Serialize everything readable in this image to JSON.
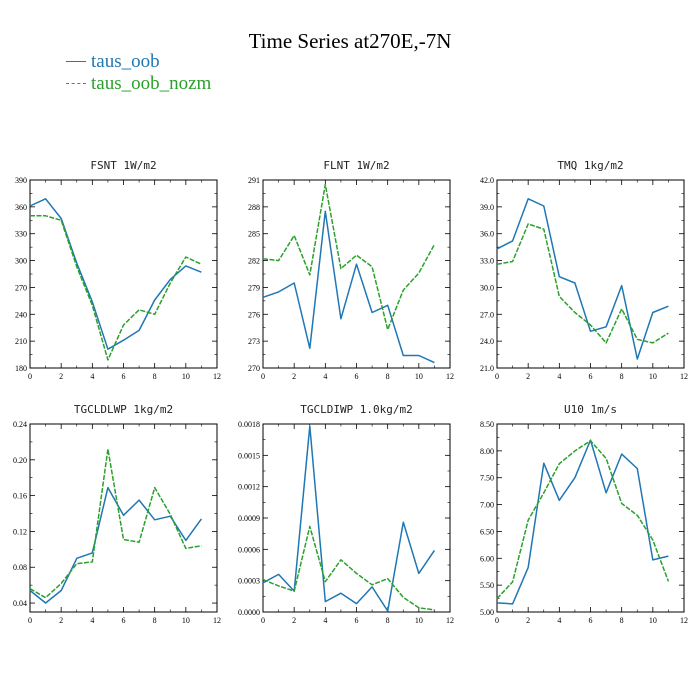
{
  "suptitle": "Time Series at270E,-7N",
  "legend": [
    {
      "label": "taus_oob",
      "color": "#1f77b4",
      "dashed": false
    },
    {
      "label": "taus_oob_nozm",
      "color": "#2ca02c",
      "dashed": true
    }
  ],
  "chart_data": [
    {
      "type": "line",
      "title": "FSNT  1W/m2",
      "xlim": [
        0,
        12
      ],
      "xticks": [
        "0",
        "2",
        "4",
        "6",
        "8",
        "10",
        "12"
      ],
      "ylim": [
        180,
        390
      ],
      "yticks": [
        "180",
        "210",
        "240",
        "270",
        "300",
        "330",
        "360",
        "390"
      ],
      "x": [
        0,
        1,
        2,
        3,
        4,
        5,
        6,
        7,
        8,
        9,
        10,
        11
      ],
      "series": [
        {
          "name": "taus_oob",
          "color": "#1f77b4",
          "dashed": false,
          "values": [
            361,
            369,
            347,
            297,
            254,
            201,
            211,
            222,
            256,
            279,
            294,
            287
          ]
        },
        {
          "name": "taus_oob_nozm",
          "color": "#2ca02c",
          "dashed": true,
          "values": [
            350,
            350,
            345,
            293,
            250,
            189,
            228,
            245,
            240,
            275,
            304,
            296
          ]
        }
      ]
    },
    {
      "type": "line",
      "title": "FLNT  1W/m2",
      "xlim": [
        0,
        12
      ],
      "xticks": [
        "0",
        "2",
        "4",
        "6",
        "8",
        "10",
        "12"
      ],
      "ylim": [
        270,
        291
      ],
      "yticks": [
        "270",
        "273",
        "276",
        "279",
        "282",
        "285",
        "288",
        "291"
      ],
      "x": [
        0,
        1,
        2,
        3,
        4,
        5,
        6,
        7,
        8,
        9,
        10,
        11
      ],
      "series": [
        {
          "name": "taus_oob",
          "color": "#1f77b4",
          "dashed": false,
          "values": [
            277.9,
            278.5,
            279.5,
            272.2,
            287.5,
            275.5,
            281.6,
            276.2,
            277.0,
            271.4,
            271.4,
            270.6
          ]
        },
        {
          "name": "taus_oob_nozm",
          "color": "#2ca02c",
          "dashed": true,
          "values": [
            282.2,
            282.0,
            284.8,
            280.4,
            290.5,
            281.1,
            282.6,
            281.3,
            274.3,
            278.7,
            280.6,
            283.8
          ]
        }
      ]
    },
    {
      "type": "line",
      "title": "TMQ  1kg/m2",
      "xlim": [
        0,
        12
      ],
      "xticks": [
        "0",
        "2",
        "4",
        "6",
        "8",
        "10",
        "12"
      ],
      "ylim": [
        21.0,
        42.0
      ],
      "yticks": [
        "21.0",
        "24.0",
        "27.0",
        "30.0",
        "33.0",
        "36.0",
        "39.0",
        "42.0"
      ],
      "x": [
        0,
        1,
        2,
        3,
        4,
        5,
        6,
        7,
        8,
        9,
        10,
        11
      ],
      "series": [
        {
          "name": "taus_oob",
          "color": "#1f77b4",
          "dashed": false,
          "values": [
            34.3,
            35.2,
            39.9,
            39.1,
            31.2,
            30.5,
            25.1,
            25.6,
            30.2,
            22.0,
            27.2,
            27.9
          ]
        },
        {
          "name": "taus_oob_nozm",
          "color": "#2ca02c",
          "dashed": true,
          "values": [
            32.6,
            32.9,
            37.1,
            36.5,
            29.0,
            27.2,
            25.8,
            23.8,
            27.6,
            24.2,
            23.8,
            24.9
          ]
        }
      ]
    },
    {
      "type": "line",
      "title": "TGCLDLWP  1kg/m2",
      "xlim": [
        0,
        12
      ],
      "xticks": [
        "0",
        "2",
        "4",
        "6",
        "8",
        "10",
        "12"
      ],
      "ylim": [
        0.03,
        0.24
      ],
      "yticks": [
        "0.04",
        "0.08",
        "0.12",
        "0.16",
        "0.20",
        "0.24"
      ],
      "x": [
        0,
        1,
        2,
        3,
        4,
        5,
        6,
        7,
        8,
        9,
        10,
        11
      ],
      "series": [
        {
          "name": "taus_oob",
          "color": "#1f77b4",
          "dashed": false,
          "values": [
            0.054,
            0.04,
            0.054,
            0.09,
            0.096,
            0.169,
            0.138,
            0.155,
            0.133,
            0.137,
            0.11,
            0.134
          ]
        },
        {
          "name": "taus_oob_nozm",
          "color": "#2ca02c",
          "dashed": true,
          "values": [
            0.056,
            0.046,
            0.062,
            0.084,
            0.086,
            0.212,
            0.111,
            0.108,
            0.169,
            0.139,
            0.101,
            0.104
          ]
        }
      ]
    },
    {
      "type": "line",
      "title": "TGCLDIWP  1.0kg/m2",
      "xlim": [
        0,
        12
      ],
      "xticks": [
        "0",
        "2",
        "4",
        "6",
        "8",
        "10",
        "12"
      ],
      "ylim": [
        0,
        0.0018
      ],
      "yticks": [
        "0.0000",
        "0.0003",
        "0.0006",
        "0.0009",
        "0.0012",
        "0.0015",
        "0.0018"
      ],
      "x": [
        0,
        1,
        2,
        3,
        4,
        5,
        6,
        7,
        8,
        9,
        10,
        11
      ],
      "series": [
        {
          "name": "taus_oob",
          "color": "#1f77b4",
          "dashed": false,
          "values": [
            0.00028,
            0.00036,
            0.0002,
            0.00178,
            0.0001,
            0.00018,
            8e-05,
            0.00024,
            1e-05,
            0.00086,
            0.00037,
            0.00059
          ]
        },
        {
          "name": "taus_oob_nozm",
          "color": "#2ca02c",
          "dashed": true,
          "values": [
            0.00031,
            0.00025,
            0.0002,
            0.00082,
            0.00029,
            0.0005,
            0.00037,
            0.00026,
            0.00032,
            0.00014,
            4e-05,
            2e-05
          ]
        }
      ]
    },
    {
      "type": "line",
      "title": "U10  1m/s",
      "xlim": [
        0,
        12
      ],
      "xticks": [
        "0",
        "2",
        "4",
        "6",
        "8",
        "10",
        "12"
      ],
      "ylim": [
        5.0,
        8.5
      ],
      "yticks": [
        "5.00",
        "5.50",
        "6.00",
        "6.50",
        "7.00",
        "7.50",
        "8.00",
        "8.50"
      ],
      "x": [
        0,
        1,
        2,
        3,
        4,
        5,
        6,
        7,
        8,
        9,
        10,
        11
      ],
      "series": [
        {
          "name": "taus_oob",
          "color": "#1f77b4",
          "dashed": false,
          "values": [
            5.17,
            5.15,
            5.83,
            7.77,
            7.08,
            7.5,
            8.2,
            7.22,
            7.94,
            7.67,
            5.97,
            6.04
          ]
        },
        {
          "name": "taus_oob_nozm",
          "color": "#2ca02c",
          "dashed": true,
          "values": [
            5.25,
            5.56,
            6.71,
            7.22,
            7.76,
            8.0,
            8.19,
            7.86,
            7.02,
            6.8,
            6.34,
            5.57
          ]
        }
      ]
    }
  ]
}
